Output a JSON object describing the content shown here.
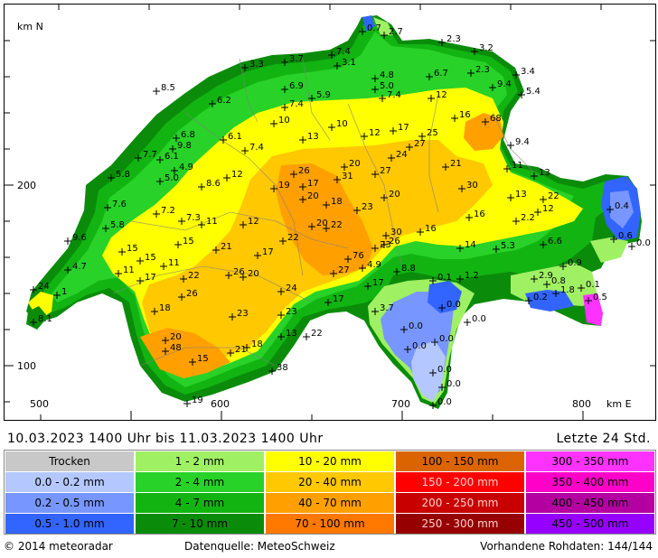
{
  "map": {
    "axis": {
      "y_unit": "km N",
      "x_unit": "km E",
      "y_ticks": [
        "200",
        "100"
      ],
      "x_ticks": [
        "500",
        "600",
        "700",
        "800"
      ]
    },
    "stations": [
      {
        "label": "0.7"
      },
      {
        "label": "2.7"
      },
      {
        "label": "2.3"
      },
      {
        "label": "3.2"
      },
      {
        "label": "7.4"
      },
      {
        "label": "3.1"
      },
      {
        "label": "3.3"
      },
      {
        "label": "3.7"
      },
      {
        "label": "4.8"
      },
      {
        "label": "6.7"
      },
      {
        "label": "2.3"
      },
      {
        "label": "3.4"
      },
      {
        "label": "8.5"
      },
      {
        "label": "6.9"
      },
      {
        "label": "5.0"
      },
      {
        "label": "9.4"
      },
      {
        "label": "5.4"
      },
      {
        "label": "6.2"
      },
      {
        "label": "5.9"
      },
      {
        "label": "7.4"
      },
      {
        "label": "12"
      },
      {
        "label": "7.4"
      },
      {
        "label": "16"
      },
      {
        "label": "68"
      },
      {
        "label": "10"
      },
      {
        "label": "10"
      },
      {
        "label": "6.8"
      },
      {
        "label": "6.1"
      },
      {
        "label": "9.8"
      },
      {
        "label": "13"
      },
      {
        "label": "12"
      },
      {
        "label": "17"
      },
      {
        "label": "25"
      },
      {
        "label": "9.4"
      },
      {
        "label": "7.7"
      },
      {
        "label": "6.1"
      },
      {
        "label": "7.4"
      },
      {
        "label": "27"
      },
      {
        "label": "4.9"
      },
      {
        "label": "24"
      },
      {
        "label": "21"
      },
      {
        "label": "11"
      },
      {
        "label": "5.8"
      },
      {
        "label": "5.0"
      },
      {
        "label": "12"
      },
      {
        "label": "26"
      },
      {
        "label": "20"
      },
      {
        "label": "13"
      },
      {
        "label": "31"
      },
      {
        "label": "27"
      },
      {
        "label": "8.6"
      },
      {
        "label": "19"
      },
      {
        "label": "17"
      },
      {
        "label": "30"
      },
      {
        "label": "20"
      },
      {
        "label": "13"
      },
      {
        "label": "22"
      },
      {
        "label": "7.6"
      },
      {
        "label": "18"
      },
      {
        "label": "20"
      },
      {
        "label": "12"
      },
      {
        "label": "0.4"
      },
      {
        "label": "7.2"
      },
      {
        "label": "23"
      },
      {
        "label": "7.3"
      },
      {
        "label": "11"
      },
      {
        "label": "12"
      },
      {
        "label": "22"
      },
      {
        "label": "20"
      },
      {
        "label": "16"
      },
      {
        "label": "2.2"
      },
      {
        "label": "5.8"
      },
      {
        "label": "30"
      },
      {
        "label": "16"
      },
      {
        "label": "0.6"
      },
      {
        "label": "26"
      },
      {
        "label": "14"
      },
      {
        "label": "9.6"
      },
      {
        "label": "15"
      },
      {
        "label": "15"
      },
      {
        "label": "21"
      },
      {
        "label": "22"
      },
      {
        "label": "23"
      },
      {
        "label": "5.3"
      },
      {
        "label": "6.6"
      },
      {
        "label": "0.0"
      },
      {
        "label": "15"
      },
      {
        "label": "17"
      },
      {
        "label": "26"
      },
      {
        "label": "4.9"
      },
      {
        "label": "4.7"
      },
      {
        "label": "11"
      },
      {
        "label": "11"
      },
      {
        "label": "76"
      },
      {
        "label": "27"
      },
      {
        "label": "0.9"
      },
      {
        "label": "17"
      },
      {
        "label": "22"
      },
      {
        "label": "20"
      },
      {
        "label": "8.8"
      },
      {
        "label": "1.2"
      },
      {
        "label": "2.9"
      },
      {
        "label": "24"
      },
      {
        "label": "1"
      },
      {
        "label": "24"
      },
      {
        "label": "17"
      },
      {
        "label": "0.1"
      },
      {
        "label": "0.8"
      },
      {
        "label": "0.1"
      },
      {
        "label": "26"
      },
      {
        "label": "1.8"
      },
      {
        "label": "0.5"
      },
      {
        "label": "17"
      },
      {
        "label": "0.2"
      },
      {
        "label": "18"
      },
      {
        "label": "3.7"
      },
      {
        "label": "0.0"
      },
      {
        "label": "23"
      },
      {
        "label": "23"
      },
      {
        "label": "8.1"
      },
      {
        "label": "0.0"
      },
      {
        "label": "0.0"
      },
      {
        "label": "22"
      },
      {
        "label": "13"
      },
      {
        "label": "20"
      },
      {
        "label": "0.0"
      },
      {
        "label": "48"
      },
      {
        "label": "18"
      },
      {
        "label": "0.0"
      },
      {
        "label": "21"
      },
      {
        "label": "15"
      },
      {
        "label": "38"
      },
      {
        "label": "0.0"
      },
      {
        "label": "0.0"
      },
      {
        "label": "19"
      },
      {
        "label": "0.0"
      }
    ]
  },
  "period": {
    "text": "10.03.2023  1400  Uhr    bis    11.03.2023  1400  Uhr",
    "window": "Letzte  24  Std."
  },
  "legend": {
    "columns": [
      [
        {
          "label": "Trocken",
          "color": "#c8c8c8"
        },
        {
          "label": "0.0  -  0.2  mm",
          "color": "#b4c8ff"
        },
        {
          "label": "0.2  -  0.5  mm",
          "color": "#7896ff"
        },
        {
          "label": "0.5  -  1.0  mm",
          "color": "#3264ff"
        }
      ],
      [
        {
          "label": "1  -  2  mm",
          "color": "#a0f064"
        },
        {
          "label": "2  -  4  mm",
          "color": "#28d228"
        },
        {
          "label": "4  -  7  mm",
          "color": "#12b412"
        },
        {
          "label": "7  -  10  mm",
          "color": "#0a8c0a"
        }
      ],
      [
        {
          "label": "10  -  20  mm",
          "color": "#ffff00"
        },
        {
          "label": "20  -  40  mm",
          "color": "#ffc800"
        },
        {
          "label": "40  -  70  mm",
          "color": "#ffa000"
        },
        {
          "label": "70  -  100  mm",
          "color": "#ff7800"
        }
      ],
      [
        {
          "label": "100  -  150  mm",
          "color": "#dc6400"
        },
        {
          "label": "150  -  200  mm",
          "color": "#ff0000"
        },
        {
          "label": "200  -  250  mm",
          "color": "#c80000"
        },
        {
          "label": "250  -  300  mm",
          "color": "#960000"
        }
      ],
      [
        {
          "label": "300  -  350  mm",
          "color": "#ff32ff"
        },
        {
          "label": "350  -  400  mm",
          "color": "#ff00c8"
        },
        {
          "label": "400  -  450  mm",
          "color": "#b400a0"
        },
        {
          "label": "450  -  500  mm",
          "color": "#9600ff"
        }
      ]
    ]
  },
  "footer": {
    "copyright": "©  2014  meteoradar",
    "source": "Datenquelle:  MeteoSchweiz",
    "raw": "Vorhandene  Rohdaten:  144/144"
  }
}
